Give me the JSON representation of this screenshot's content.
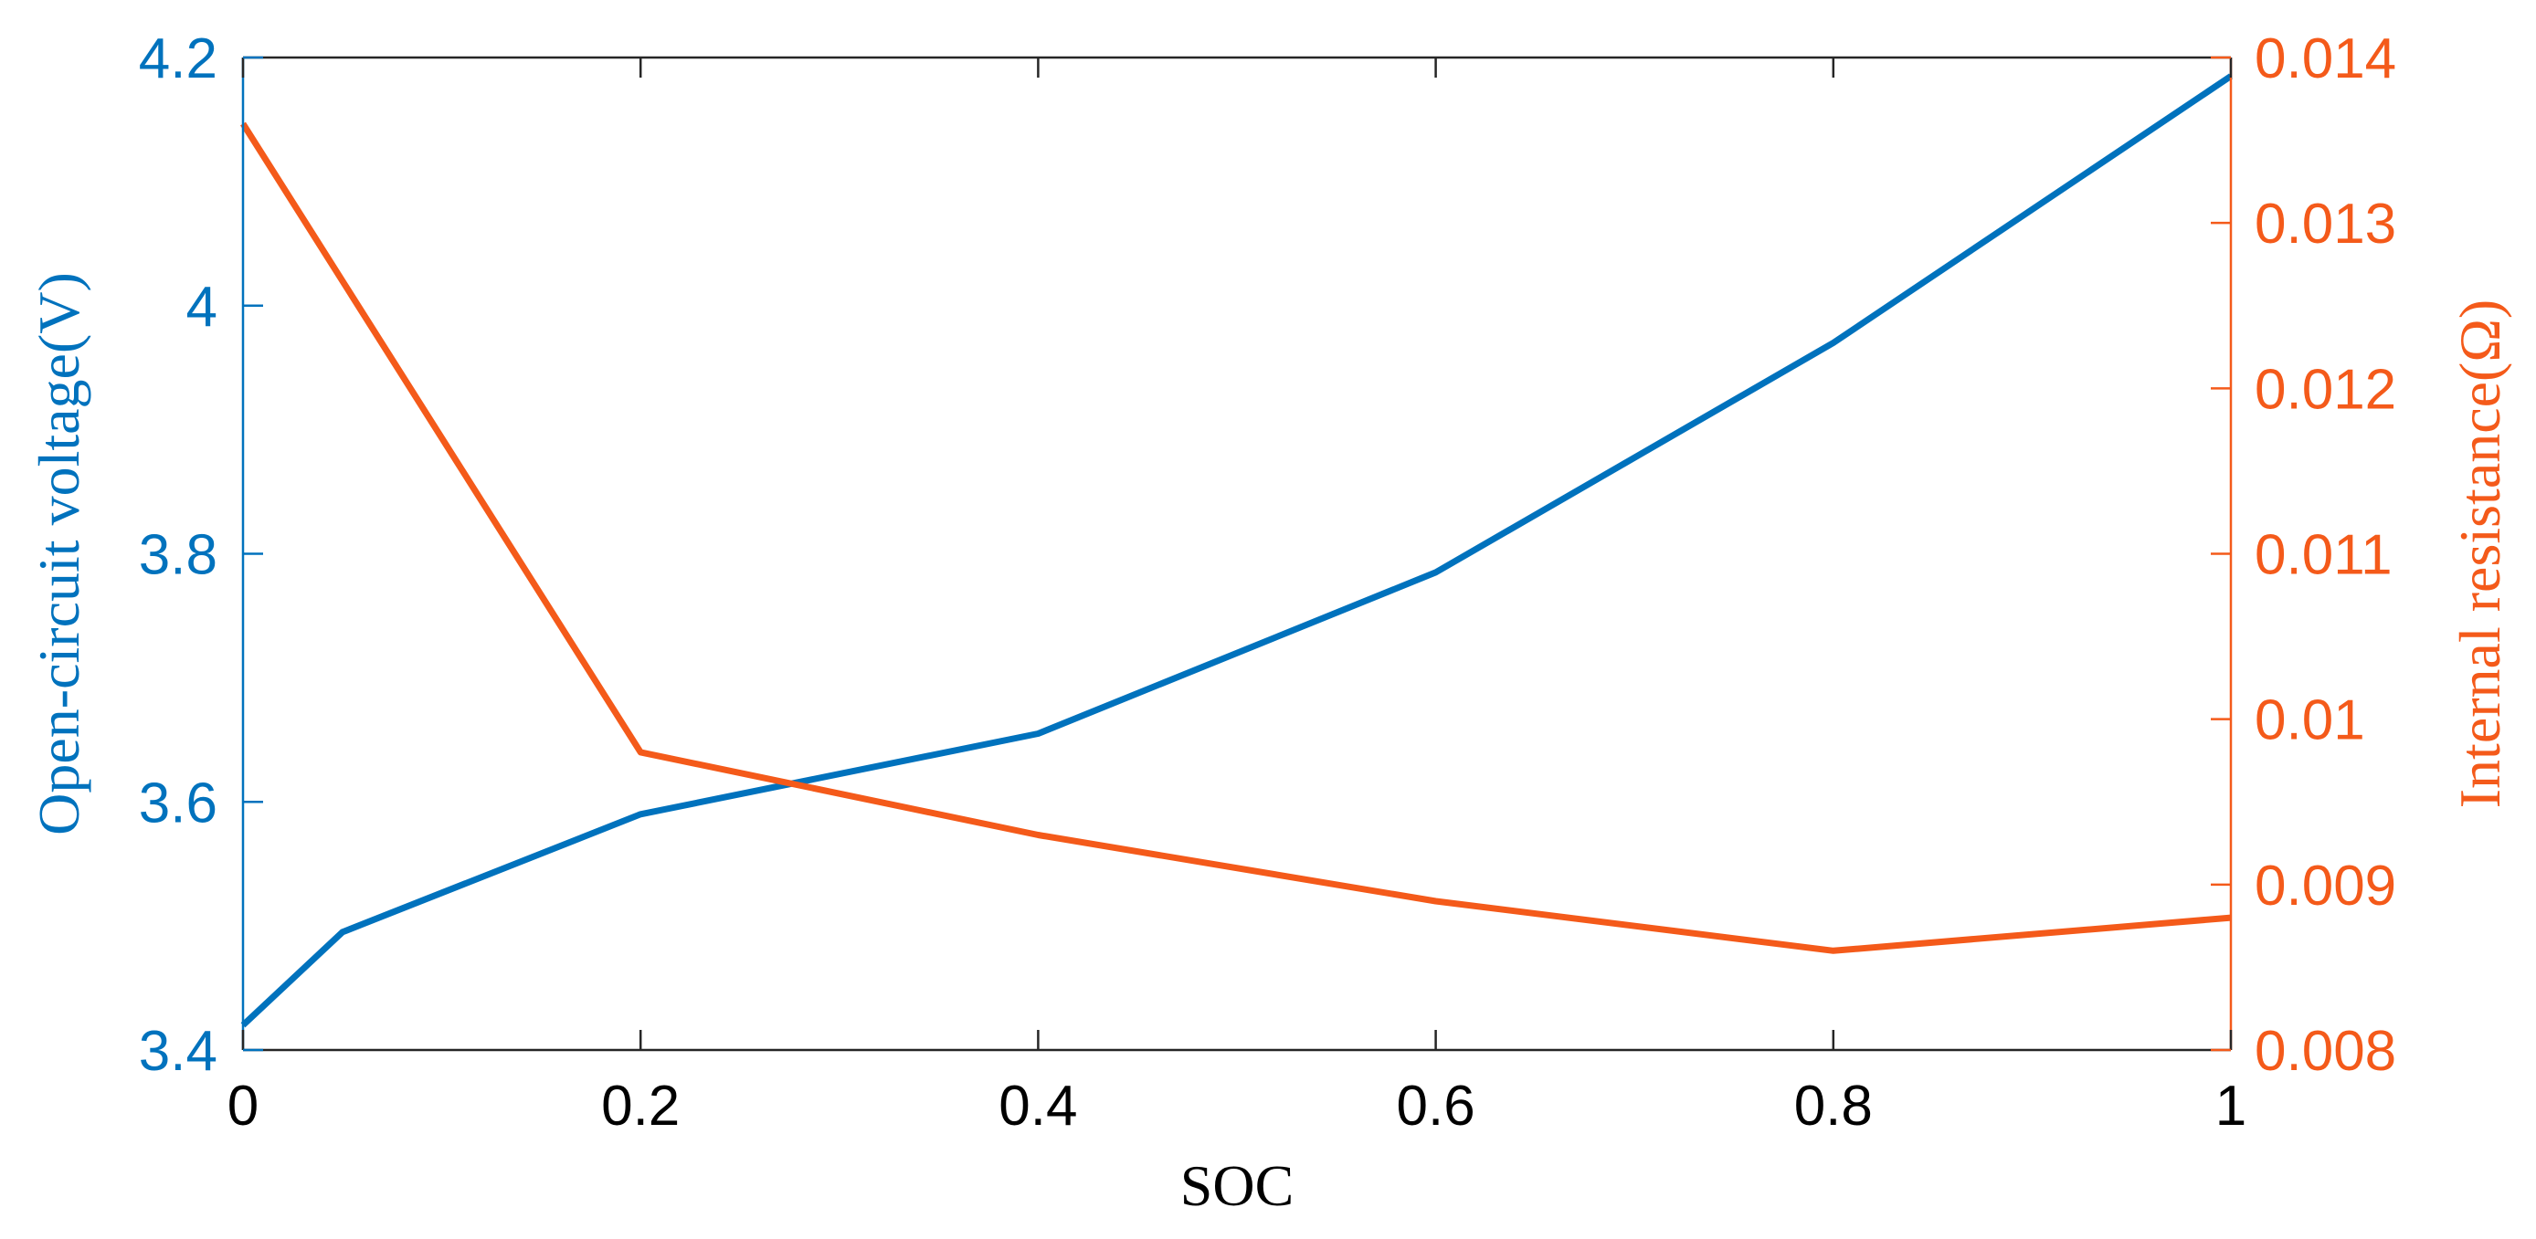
{
  "chart_data": {
    "type": "line",
    "xlabel": "SOC",
    "xlim": [
      0,
      1
    ],
    "x_ticks": [
      "0",
      "0.2",
      "0.4",
      "0.6",
      "0.8",
      "1"
    ],
    "x_tick_values": [
      0,
      0.2,
      0.4,
      0.6,
      0.8,
      1
    ],
    "grid": false,
    "legend": "none",
    "left_axis": {
      "label": "Open-circuit voltage(V)",
      "ylim": [
        3.4,
        4.2
      ],
      "ticks": [
        "3.4",
        "3.6",
        "3.8",
        "4",
        "4.2"
      ],
      "tick_values": [
        3.4,
        3.6,
        3.8,
        4.0,
        4.2
      ],
      "color": "#0072BD"
    },
    "right_axis": {
      "label": "Internal resistance(Ω)",
      "ylim": [
        0.008,
        0.014
      ],
      "ticks": [
        "0.008",
        "0.009",
        "0.01",
        "0.011",
        "0.012",
        "0.013",
        "0.014"
      ],
      "tick_values": [
        0.008,
        0.009,
        0.01,
        0.011,
        0.012,
        0.013,
        0.014
      ],
      "color": "#F45A1A"
    },
    "series": [
      {
        "axis": "left",
        "color": "#0072BD",
        "x": [
          0,
          0.05,
          0.2,
          0.4,
          0.6,
          0.8,
          1
        ],
        "y": [
          3.42,
          3.495,
          3.59,
          3.655,
          3.785,
          3.97,
          4.185
        ]
      },
      {
        "axis": "right",
        "color": "#F45A1A",
        "x": [
          0,
          0.2,
          0.4,
          0.6,
          0.8,
          1
        ],
        "y": [
          0.0136,
          0.0098,
          0.0093,
          0.0089,
          0.0086,
          0.0088
        ]
      }
    ]
  }
}
